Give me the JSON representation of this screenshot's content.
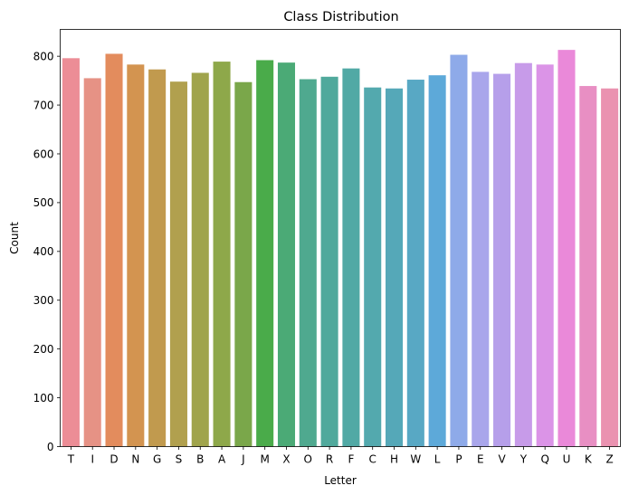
{
  "chart_data": {
    "type": "bar",
    "title": "Class Distribution",
    "xlabel": "Letter",
    "ylabel": "Count",
    "ylim": [
      0,
      855
    ],
    "yticks": [
      0,
      100,
      200,
      300,
      400,
      500,
      600,
      700,
      800
    ],
    "grid": false,
    "legend": "none",
    "categories": [
      "T",
      "I",
      "D",
      "N",
      "G",
      "S",
      "B",
      "A",
      "J",
      "M",
      "X",
      "O",
      "R",
      "F",
      "C",
      "H",
      "W",
      "L",
      "P",
      "E",
      "V",
      "Y",
      "Q",
      "U",
      "K",
      "Z"
    ],
    "values": [
      796,
      755,
      805,
      783,
      773,
      748,
      766,
      789,
      747,
      792,
      787,
      753,
      758,
      775,
      736,
      734,
      752,
      761,
      803,
      768,
      764,
      786,
      783,
      813,
      739,
      734
    ],
    "colors": [
      "#ec8d96",
      "#e69285",
      "#e38c5d",
      "#d39450",
      "#c19a4e",
      "#b1a04e",
      "#a0a44c",
      "#8ea84a",
      "#7aa74a",
      "#4aab4a",
      "#4baa76",
      "#4fa98f",
      "#50a99c",
      "#51a9a5",
      "#53a9ae",
      "#55a8b8",
      "#58a8c4",
      "#5da9d9",
      "#8eaae9",
      "#a9a6eb",
      "#b69fea",
      "#c79be9",
      "#db94e7",
      "#ea89d9",
      "#e88fc3",
      "#ea92b0"
    ]
  }
}
